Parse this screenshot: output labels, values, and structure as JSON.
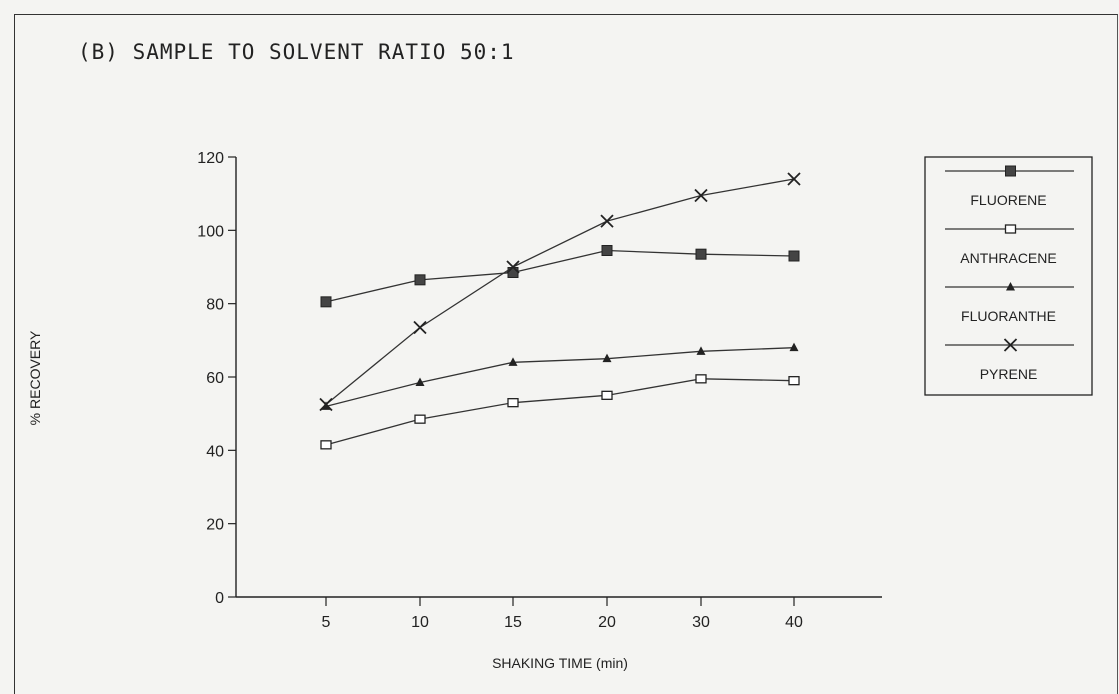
{
  "chart_data": {
    "type": "line",
    "title": "(B)   SAMPLE TO SOLVENT RATIO 50:1",
    "xlabel": "SHAKING TIME (min)",
    "ylabel": "% RECOVERY",
    "categories": [
      "5",
      "10",
      "15",
      "20",
      "30",
      "40"
    ],
    "ylim": [
      0,
      120
    ],
    "yticks": [
      0,
      20,
      40,
      60,
      80,
      100,
      120
    ],
    "grid": false,
    "legend_position": "right",
    "series": [
      {
        "name": "FLUORENE",
        "marker": "filled-square",
        "values": [
          80.5,
          86.5,
          88.5,
          94.5,
          93.5,
          93
        ]
      },
      {
        "name": "ANTHRACENE",
        "marker": "open-square",
        "values": [
          41.5,
          48.5,
          53,
          55,
          59.5,
          59
        ]
      },
      {
        "name": "FLUORANTHE",
        "marker": "triangle",
        "values": [
          52,
          58.5,
          64,
          65,
          67,
          68
        ]
      },
      {
        "name": "PYRENE",
        "marker": "bowtie",
        "values": [
          52.5,
          73.5,
          90,
          102.5,
          109.5,
          114
        ]
      }
    ]
  }
}
